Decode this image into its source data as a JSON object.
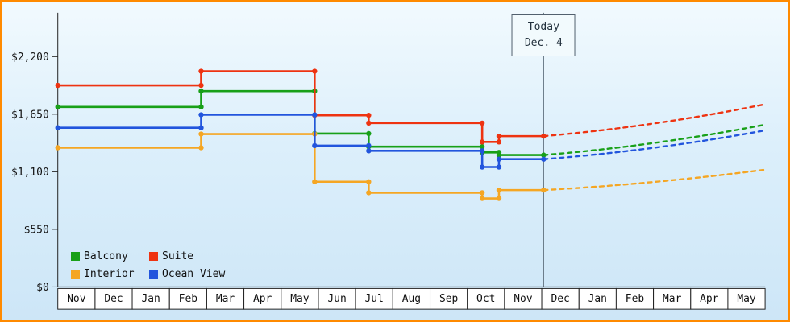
{
  "window": {
    "border_color": "#ff8a00",
    "background_top": "#f2fafe",
    "background_bottom": "#cde6f7"
  },
  "chart_data": {
    "type": "line",
    "subtype": "step-price-history-with-forecast",
    "months": [
      "Nov",
      "Dec",
      "Jan",
      "Feb",
      "Mar",
      "Apr",
      "May",
      "Jun",
      "Jul",
      "Aug",
      "Sep",
      "Oct",
      "Nov",
      "Dec",
      "Jan",
      "Feb",
      "Mar",
      "Apr",
      "May"
    ],
    "y_axis": {
      "max": 2200,
      "ticks": [
        {
          "value": 0,
          "label": "$0"
        },
        {
          "value": 550,
          "label": "$550"
        },
        {
          "value": 1100,
          "label": "$1,100"
        },
        {
          "value": 1650,
          "label": "$1,650"
        },
        {
          "value": 2200,
          "label": "$2,200"
        }
      ]
    },
    "today": {
      "month_index": 13.05,
      "label_line1": "Today",
      "label_line2": "Dec. 4"
    },
    "series": [
      {
        "name": "Balcony",
        "color": "#18a018",
        "steps": [
          [
            0,
            1720
          ],
          [
            3.85,
            1870
          ],
          [
            6.9,
            1465
          ],
          [
            8.35,
            1340
          ],
          [
            11.4,
            1285
          ],
          [
            11.85,
            1260
          ]
        ],
        "forecast_end": 1550
      },
      {
        "name": "Suite",
        "color": "#ee3311",
        "steps": [
          [
            0,
            1925
          ],
          [
            3.85,
            2060
          ],
          [
            6.9,
            1640
          ],
          [
            8.35,
            1565
          ],
          [
            11.4,
            1385
          ],
          [
            11.85,
            1440
          ]
        ],
        "forecast_end": 1745
      },
      {
        "name": "Interior",
        "color": "#f5a623",
        "steps": [
          [
            0,
            1330
          ],
          [
            3.85,
            1460
          ],
          [
            6.9,
            1005
          ],
          [
            8.35,
            900
          ],
          [
            11.4,
            845
          ],
          [
            11.85,
            925
          ]
        ],
        "forecast_end": 1120
      },
      {
        "name": "Ocean View",
        "color": "#2255dd",
        "steps": [
          [
            0,
            1520
          ],
          [
            3.85,
            1645
          ],
          [
            6.9,
            1350
          ],
          [
            8.35,
            1300
          ],
          [
            11.4,
            1145
          ],
          [
            11.85,
            1220
          ]
        ],
        "forecast_end": 1495
      }
    ],
    "legend": {
      "position": "bottom-left",
      "order": [
        "Balcony",
        "Suite",
        "Interior",
        "Ocean View"
      ]
    },
    "forecast_style": "dashed",
    "grid": "off"
  }
}
